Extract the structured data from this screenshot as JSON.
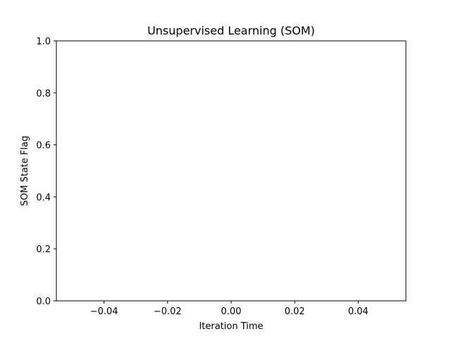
{
  "chart_data": {
    "type": "line",
    "title": "Unsupervised Learning (SOM)",
    "xlabel": "Iteration Time",
    "ylabel": "SOM State Flag",
    "xlim": [
      -0.055,
      0.055
    ],
    "ylim": [
      0.0,
      1.0
    ],
    "xticks": [
      -0.04,
      -0.02,
      0.0,
      0.02,
      0.04
    ],
    "xtick_labels": [
      "−0.04",
      "−0.02",
      "0.00",
      "0.02",
      "0.04"
    ],
    "yticks": [
      0.0,
      0.2,
      0.4,
      0.6,
      0.8,
      1.0
    ],
    "ytick_labels": [
      "0.0",
      "0.2",
      "0.4",
      "0.6",
      "0.8",
      "1.0"
    ],
    "grid": false,
    "series": [
      {
        "x": [],
        "y": []
      }
    ]
  }
}
